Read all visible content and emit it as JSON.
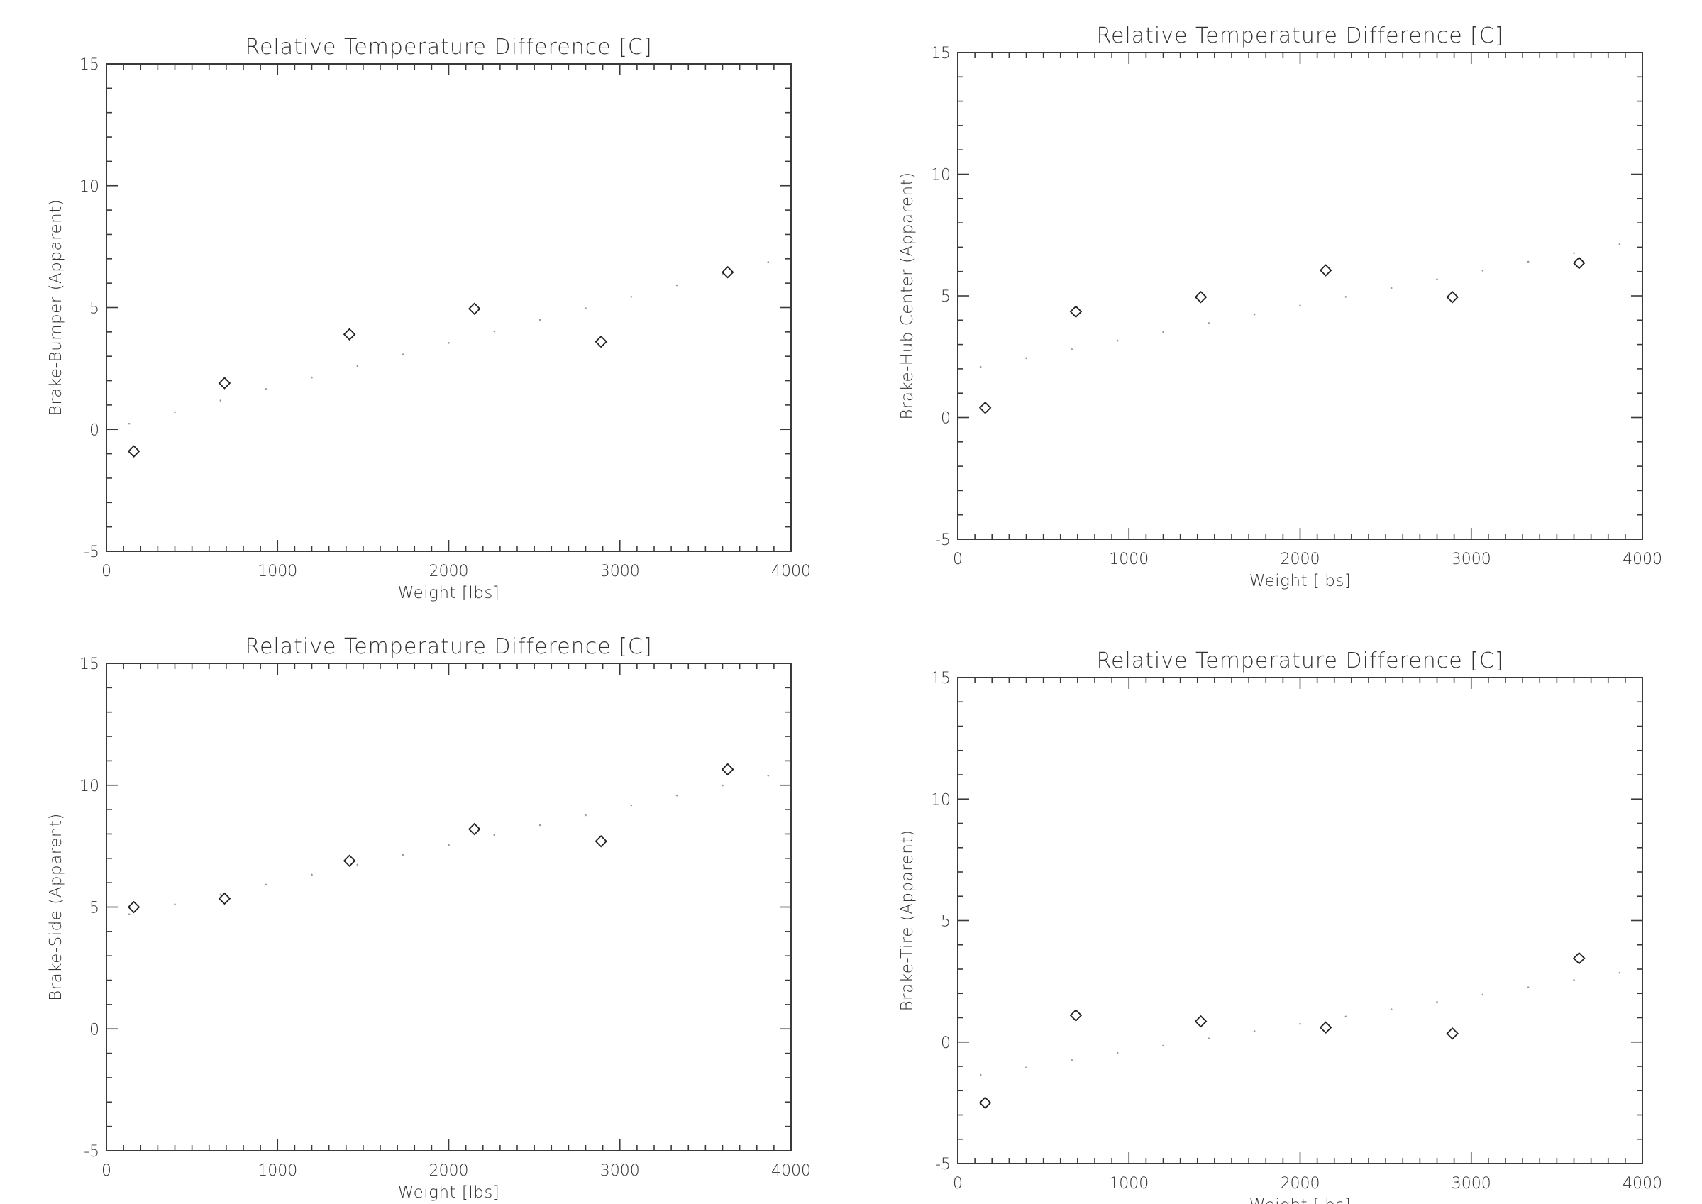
{
  "figure": {
    "background": "#ffffff",
    "ink_color": "#333333"
  },
  "chart_data": [
    {
      "id": "brake-bumper",
      "type": "scatter",
      "title": "Relative Temperature  Difference [C]",
      "xlabel": "Weight [lbs]",
      "ylabel": "Brake-Bumper (Apparent)",
      "xlim": [
        0,
        4000
      ],
      "ylim": [
        -5,
        15
      ],
      "xticks": [
        0,
        1000,
        2000,
        3000,
        4000
      ],
      "yticks": [
        -5,
        0,
        5,
        10,
        15
      ],
      "xticks_minor_step": 100,
      "yticks_minor_step": 1,
      "marker": "diamond",
      "grid": false,
      "x": [
        160,
        690,
        1420,
        2150,
        2890,
        3630
      ],
      "y": [
        -0.9,
        1.9,
        3.9,
        4.95,
        3.6,
        6.45
      ],
      "fit_line": {
        "style": "dotted",
        "x": [
          0,
          4000
        ],
        "y": [
          0.0,
          7.1
        ]
      }
    },
    {
      "id": "brake-hub-center",
      "type": "scatter",
      "title": "Relative Temperature  Difference [C]",
      "xlabel": "Weight [lbs]",
      "ylabel": "Brake-Hub Center (Apparent)",
      "xlim": [
        0,
        4000
      ],
      "ylim": [
        -5,
        15
      ],
      "xticks": [
        0,
        1000,
        2000,
        3000,
        4000
      ],
      "yticks": [
        -5,
        0,
        5,
        10,
        15
      ],
      "xticks_minor_step": 100,
      "yticks_minor_step": 1,
      "marker": "diamond",
      "grid": false,
      "x": [
        160,
        690,
        1420,
        2150,
        2890,
        3630
      ],
      "y": [
        0.4,
        4.35,
        4.95,
        6.05,
        4.95,
        6.35
      ],
      "fit_line": {
        "style": "dotted",
        "x": [
          0,
          4000
        ],
        "y": [
          1.9,
          7.3
        ]
      }
    },
    {
      "id": "brake-side",
      "type": "scatter",
      "title": "Relative Temperature  Difference [C]",
      "xlabel": "Weight [lbs]",
      "ylabel": "Brake-Side (Apparent)",
      "xlim": [
        0,
        4000
      ],
      "ylim": [
        -5,
        15
      ],
      "xticks": [
        0,
        1000,
        2000,
        3000,
        4000
      ],
      "yticks": [
        -5,
        0,
        5,
        10,
        15
      ],
      "xticks_minor_step": 100,
      "yticks_minor_step": 1,
      "marker": "diamond",
      "grid": false,
      "x": [
        160,
        690,
        1420,
        2150,
        2890,
        3630
      ],
      "y": [
        5.0,
        5.35,
        6.9,
        8.2,
        7.7,
        10.65
      ],
      "fit_line": {
        "style": "dotted",
        "x": [
          0,
          4000
        ],
        "y": [
          4.5,
          10.6
        ]
      }
    },
    {
      "id": "brake-tire",
      "type": "scatter",
      "title": "Relative Temperature  Difference [C]",
      "xlabel": "Weight [lbs]",
      "ylabel": "Brake-Tire (Apparent)",
      "xlim": [
        0,
        4000
      ],
      "ylim": [
        -5,
        15
      ],
      "xticks": [
        0,
        1000,
        2000,
        3000,
        4000
      ],
      "yticks": [
        -5,
        0,
        5,
        10,
        15
      ],
      "xticks_minor_step": 100,
      "yticks_minor_step": 1,
      "marker": "diamond",
      "grid": false,
      "x": [
        160,
        690,
        1420,
        2150,
        2890,
        3630
      ],
      "y": [
        -2.5,
        1.1,
        0.85,
        0.6,
        0.35,
        3.45
      ],
      "fit_line": {
        "style": "dotted",
        "x": [
          0,
          4000
        ],
        "y": [
          -1.5,
          3.0
        ]
      }
    }
  ]
}
